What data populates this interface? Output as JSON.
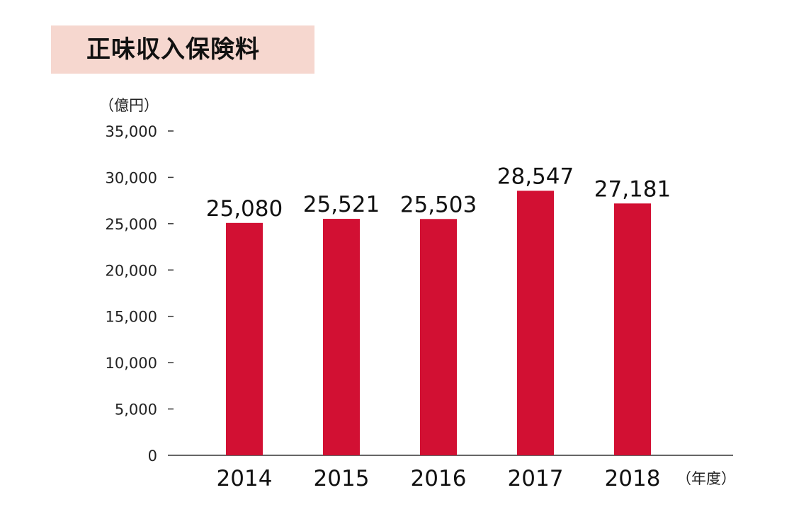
{
  "chart_data": {
    "type": "bar",
    "title": "正味収入保険料",
    "ylabel": "（億円）",
    "xlabel": "（年度）",
    "categories": [
      "2014",
      "2015",
      "2016",
      "2017",
      "2018"
    ],
    "values": [
      25080,
      25521,
      25503,
      28547,
      27181
    ],
    "value_labels": [
      "25,080",
      "25,521",
      "25,503",
      "28,547",
      "27,181"
    ],
    "ylim": [
      0,
      35000
    ],
    "yticks": [
      0,
      5000,
      10000,
      15000,
      20000,
      25000,
      30000,
      35000
    ],
    "ytick_labels": [
      "0",
      "5,000",
      "10,000",
      "15,000",
      "20,000",
      "25,000",
      "30,000",
      "35,000"
    ],
    "grid": false,
    "legend": "none",
    "colors": {
      "bar": "#d21033",
      "title_bg": "#f6d7cf",
      "axis": "#333333"
    }
  }
}
